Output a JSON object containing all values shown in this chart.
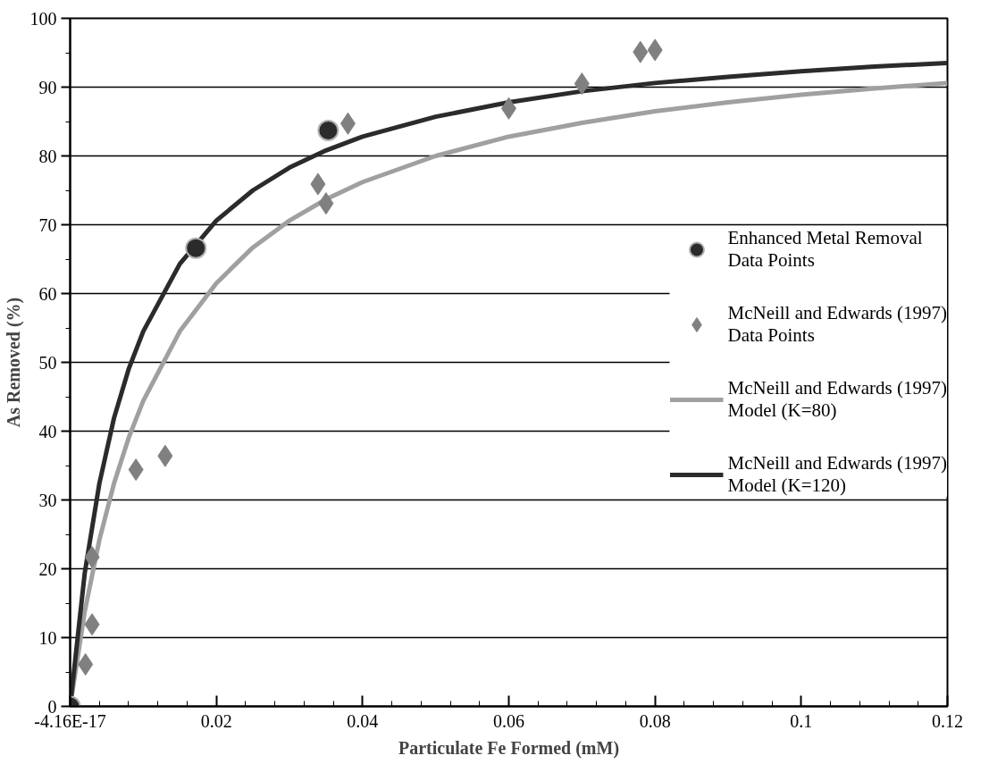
{
  "chart_data": {
    "type": "scatter",
    "xlabel": "Particulate Fe Formed (mM)",
    "ylabel": "As Removed (%)",
    "xlim": [
      0,
      0.12
    ],
    "ylim": [
      0,
      100
    ],
    "xticks": [
      {
        "value": 0,
        "label": "-4.16E-17"
      },
      0.02,
      0.04,
      0.06,
      0.08,
      0.1,
      0.12
    ],
    "yticks": [
      0,
      10,
      20,
      30,
      40,
      50,
      60,
      70,
      80,
      90,
      100
    ],
    "grid": "y",
    "legend": "right",
    "series": [
      {
        "name": "Enhanced Metal Removal Data Points",
        "marker": "circle",
        "color": "#2b2b2b",
        "x": [
          0,
          0.0172,
          0.0353
        ],
        "values": [
          0,
          66.6,
          83.7
        ]
      },
      {
        "name": "McNeill and Edwards (1997) Data Points",
        "marker": "diamond",
        "color": "#808080",
        "x": [
          0.0021,
          0.003,
          0.003,
          0.009,
          0.013,
          0.0339,
          0.035,
          0.038,
          0.06,
          0.07,
          0.078,
          0.08
        ],
        "values": [
          6.1,
          11.9,
          21.7,
          34.4,
          36.4,
          75.9,
          73.1,
          84.7,
          86.9,
          90.5,
          95.1,
          95.4
        ]
      },
      {
        "name": "McNeill and Edwards (1997) Model (K=80)",
        "type": "line",
        "marker": "none",
        "color": "#a0a0a0",
        "x": [
          0,
          0.002,
          0.004,
          0.006,
          0.008,
          0.01,
          0.015,
          0.02,
          0.025,
          0.03,
          0.035,
          0.04,
          0.05,
          0.06,
          0.07,
          0.08,
          0.09,
          0.1,
          0.11,
          0.12
        ],
        "values": [
          0,
          13.8,
          24.2,
          32.4,
          39.0,
          44.4,
          54.5,
          61.5,
          66.7,
          70.6,
          73.7,
          76.2,
          80.0,
          82.8,
          84.8,
          86.5,
          87.8,
          88.9,
          89.8,
          90.6
        ]
      },
      {
        "name": "McNeill and Edwards (1997) Model (K=120)",
        "type": "line",
        "marker": "none",
        "color": "#2b2b2b",
        "x": [
          0,
          0.002,
          0.004,
          0.006,
          0.008,
          0.01,
          0.015,
          0.02,
          0.025,
          0.03,
          0.035,
          0.04,
          0.05,
          0.06,
          0.07,
          0.08,
          0.09,
          0.1,
          0.11,
          0.12
        ],
        "values": [
          0,
          19.4,
          32.4,
          41.9,
          49.0,
          54.5,
          64.3,
          70.6,
          75.0,
          78.3,
          80.8,
          82.8,
          85.7,
          87.8,
          89.4,
          90.6,
          91.5,
          92.3,
          93.0,
          93.5
        ]
      }
    ]
  }
}
